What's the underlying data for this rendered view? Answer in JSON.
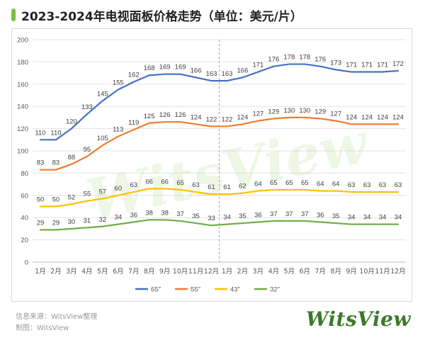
{
  "title": "2023-2024年电视面板价格走势（单位：美元/片）",
  "accent_color": "#7cbf3c",
  "footer": {
    "source": "信息来源：WitsView整理",
    "maker": "制图：WitsView"
  },
  "brand": "WitsView",
  "watermark": "WitsView",
  "chart_data": {
    "type": "line",
    "title": "",
    "xlabel": "",
    "ylabel": "",
    "ylim": [
      0,
      200
    ],
    "yticks": [
      0,
      20,
      40,
      60,
      80,
      100,
      120,
      140,
      160,
      180,
      200
    ],
    "grid": true,
    "legend_position": "bottom",
    "year_divider_after_index": 11,
    "categories": [
      "1月",
      "2月",
      "3月",
      "4月",
      "5月",
      "6月",
      "7月",
      "8月",
      "9月",
      "10月",
      "11月",
      "12月",
      "1月",
      "2月",
      "3月",
      "4月",
      "5月",
      "6月",
      "7月",
      "8月",
      "9月",
      "10月",
      "11月",
      "12月"
    ],
    "series": [
      {
        "name": "65\"",
        "color": "#4472c4",
        "values": [
          110,
          110,
          120,
          133,
          145,
          155,
          162,
          168,
          169,
          169,
          166,
          163,
          163,
          166,
          171,
          176,
          178,
          178,
          176,
          173,
          171,
          171,
          171,
          172
        ]
      },
      {
        "name": "55\"",
        "color": "#ed7d31",
        "values": [
          83,
          83,
          88,
          95,
          105,
          113,
          119,
          125,
          126,
          126,
          124,
          122,
          122,
          124,
          127,
          129,
          130,
          130,
          129,
          127,
          124,
          124,
          124,
          124
        ]
      },
      {
        "name": "43\"",
        "color": "#ffc000",
        "values": [
          50,
          50,
          52,
          55,
          57,
          60,
          63,
          66,
          66,
          65,
          63,
          61,
          61,
          62,
          64,
          65,
          65,
          65,
          64,
          64,
          63,
          63,
          63,
          63
        ]
      },
      {
        "name": "32\"",
        "color": "#70ad47",
        "values": [
          29,
          29,
          30,
          31,
          32,
          34,
          36,
          38,
          38,
          37,
          35,
          33,
          34,
          35,
          36,
          37,
          37,
          37,
          36,
          35,
          34,
          34,
          34,
          34
        ]
      }
    ]
  }
}
